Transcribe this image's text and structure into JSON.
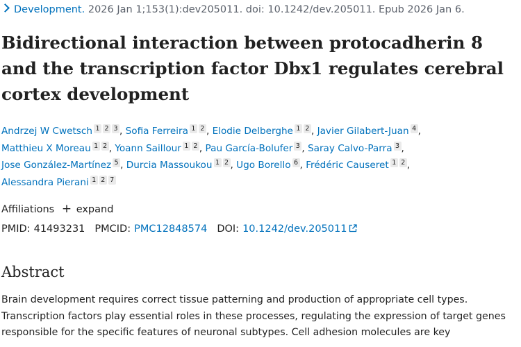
{
  "citation": {
    "journal": "Development.",
    "details": "2026 Jan 1;153(1):dev205011. doi: 10.1242/dev.205011. Epub 2026 Jan 6."
  },
  "title": {
    "line1": "Bidirectional interaction between protocadherin 8",
    "line2": "and the transcription factor Dbx1 regulates cerebral",
    "line3": "cortex development"
  },
  "authors": [
    {
      "name": "Andrzej W Cwetsch",
      "affs": [
        "1",
        "2",
        "3"
      ]
    },
    {
      "name": "Sofia Ferreira",
      "affs": [
        "1",
        "2"
      ]
    },
    {
      "name": "Elodie Delberghe",
      "affs": [
        "1",
        "2"
      ]
    },
    {
      "name": "Javier Gilabert-Juan",
      "affs": [
        "4"
      ]
    },
    {
      "name": "Matthieu X Moreau",
      "affs": [
        "1",
        "2"
      ]
    },
    {
      "name": "Yoann Saillour",
      "affs": [
        "1",
        "2"
      ]
    },
    {
      "name": "Pau García-Bolufer",
      "affs": [
        "3"
      ]
    },
    {
      "name": "Saray Calvo-Parra",
      "affs": [
        "3"
      ]
    },
    {
      "name": "Jose González-Martínez",
      "affs": [
        "5"
      ]
    },
    {
      "name": "Durcia Massoukou",
      "affs": [
        "1",
        "2"
      ]
    },
    {
      "name": "Ugo Borello",
      "affs": [
        "6"
      ]
    },
    {
      "name": "Frédéric Causeret",
      "affs": [
        "1",
        "2"
      ]
    },
    {
      "name": "Alessandra Pierani",
      "affs": [
        "1",
        "2",
        "7"
      ]
    }
  ],
  "affiliations": {
    "label": "Affiliations",
    "expand_label": "expand"
  },
  "identifiers": {
    "pmid_label": "PMID:",
    "pmid": "41493231",
    "pmcid_label": "PMCID:",
    "pmcid": "PMC12848574",
    "doi_label": "DOI:",
    "doi": "10.1242/dev.205011"
  },
  "abstract": {
    "heading": "Abstract",
    "lines": [
      "Brain development requires correct tissue patterning and production of appropriate cell types.",
      "Transcription factors play essential roles in these processes, regulating the expression of target genes",
      "responsible for the specific features of neuronal subtypes. Cell adhesion molecules are key"
    ]
  },
  "colors": {
    "link": "#0071bc",
    "text": "#212121",
    "muted": "#5b616b",
    "badge_bg": "#eaeaea"
  }
}
